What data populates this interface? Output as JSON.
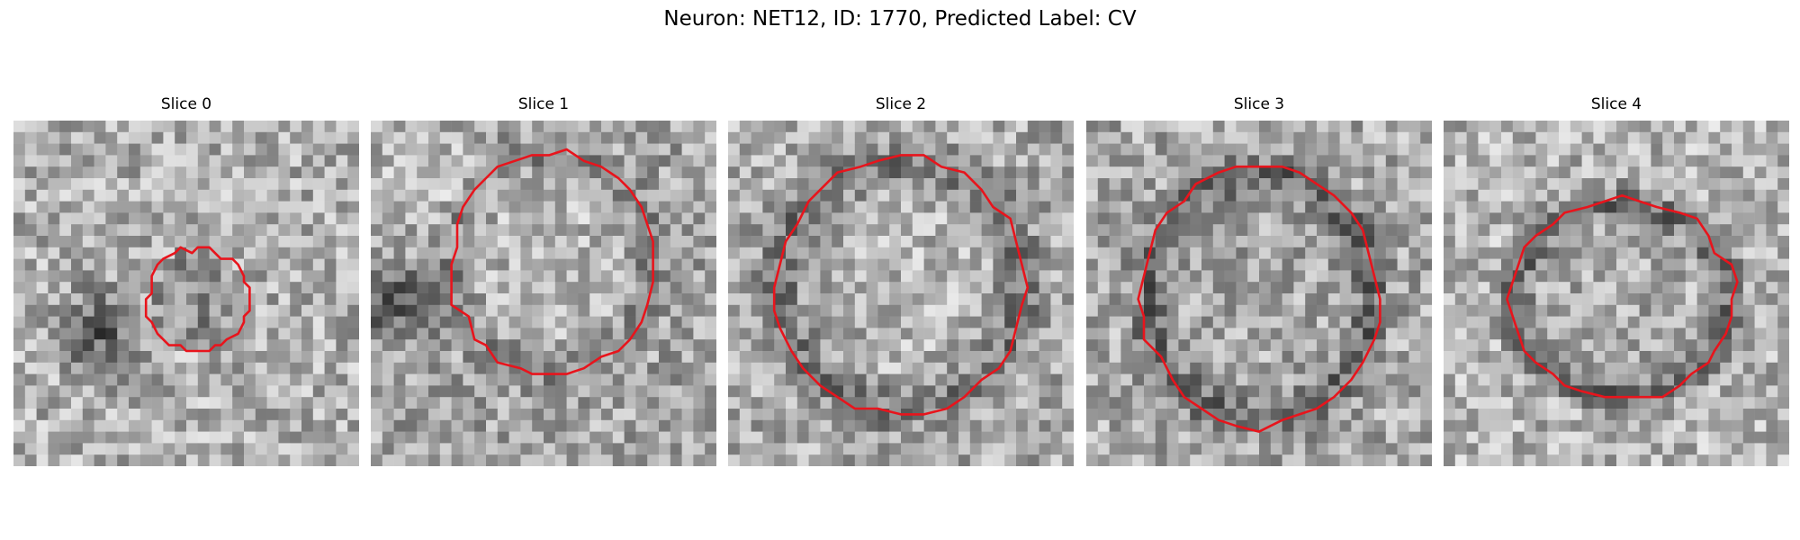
{
  "figure": {
    "title": "Neuron: NET12, ID: 1770, Predicted Label: CV"
  },
  "contour_color": "#e8141c",
  "slices": [
    {
      "title": "Slice 0"
    },
    {
      "title": "Slice 1"
    },
    {
      "title": "Slice 2"
    },
    {
      "title": "Slice 3"
    },
    {
      "title": "Slice 4"
    }
  ]
}
